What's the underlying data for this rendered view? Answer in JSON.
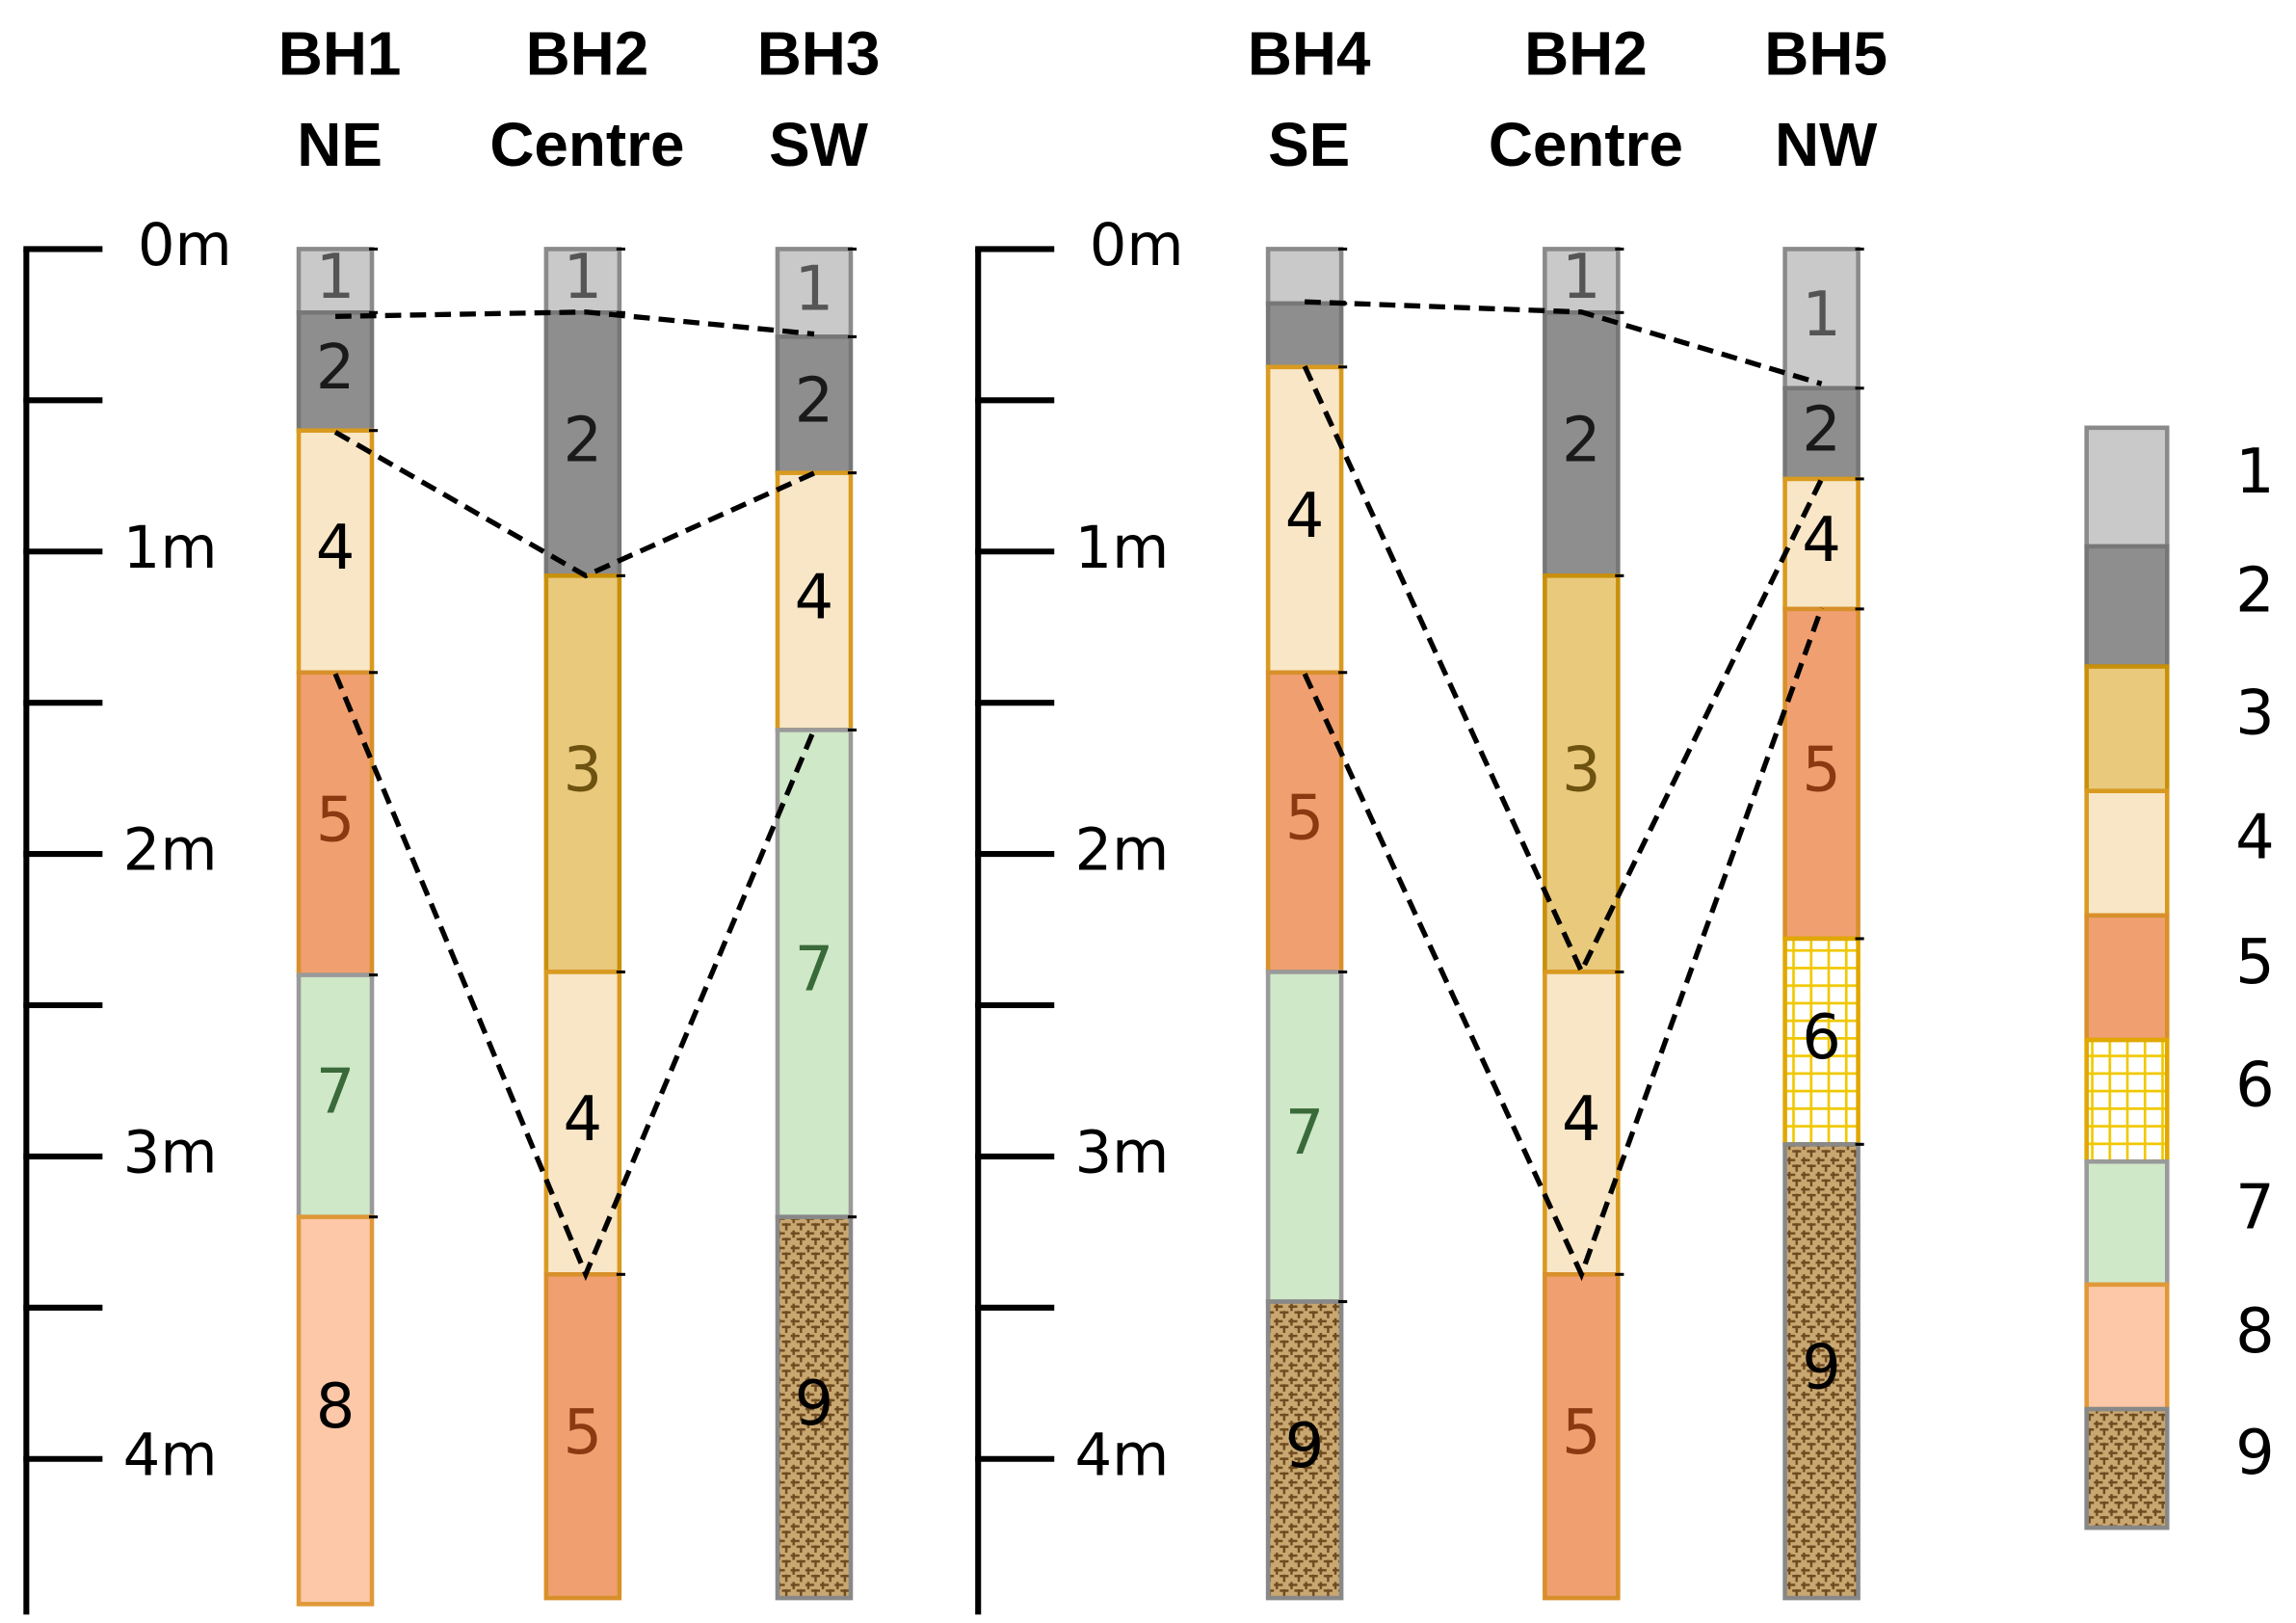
{
  "panels": [
    {
      "scale": {
        "lim": [
          0,
          4.5
        ],
        "ticks": [
          {
            "value": 0,
            "label": "0m"
          },
          {
            "value": 1,
            "label": "1m"
          },
          {
            "value": 2,
            "label": "2m"
          },
          {
            "value": 3,
            "label": "3m"
          },
          {
            "value": 4,
            "label": "4m"
          }
        ],
        "minor_ticks": [
          0.5,
          1.5,
          2.5,
          3.5
        ]
      },
      "boreholes": [
        {
          "name": "BH1",
          "location": "NE",
          "layers": [
            {
              "type": 1,
              "label": "1",
              "top": 0,
              "bottom": 0.21
            },
            {
              "type": 2,
              "label": "2",
              "top": 0.21,
              "bottom": 0.6
            },
            {
              "type": 4,
              "label": "4",
              "top": 0.6,
              "bottom": 1.4
            },
            {
              "type": 5,
              "label": "5",
              "top": 1.4,
              "bottom": 2.4
            },
            {
              "type": 7,
              "label": "7",
              "top": 2.4,
              "bottom": 3.2
            },
            {
              "type": 8,
              "label": "8",
              "top": 3.2,
              "bottom": 4.48
            }
          ]
        },
        {
          "name": "BH2",
          "location": "Centre",
          "layers": [
            {
              "type": 1,
              "label": "1",
              "top": 0,
              "bottom": 0.21
            },
            {
              "type": 2,
              "label": "2",
              "top": 0.21,
              "bottom": 1.08
            },
            {
              "type": 3,
              "label": "3",
              "top": 1.08,
              "bottom": 2.39
            },
            {
              "type": 4,
              "label": "4",
              "top": 2.39,
              "bottom": 3.39
            },
            {
              "type": 5,
              "label": "5",
              "top": 3.39,
              "bottom": 4.46
            }
          ]
        },
        {
          "name": "BH3",
          "location": "SW",
          "layers": [
            {
              "type": 1,
              "label": "1",
              "top": 0,
              "bottom": 0.29
            },
            {
              "type": 2,
              "label": "2",
              "top": 0.29,
              "bottom": 0.74
            },
            {
              "type": 4,
              "label": "4",
              "top": 0.74,
              "bottom": 1.59
            },
            {
              "type": 7,
              "label": "7",
              "top": 1.59,
              "bottom": 3.2
            },
            {
              "type": 9,
              "label": "9",
              "top": 3.2,
              "bottom": 4.46
            }
          ]
        }
      ]
    },
    {
      "scale": {
        "lim": [
          0,
          4.5
        ],
        "ticks": [
          {
            "value": 0,
            "label": "0m"
          },
          {
            "value": 1,
            "label": "1m"
          },
          {
            "value": 2,
            "label": "2m"
          },
          {
            "value": 3,
            "label": "3m"
          },
          {
            "value": 4,
            "label": "4m"
          }
        ],
        "minor_ticks": [
          0.5,
          1.5,
          2.5,
          3.5
        ]
      },
      "boreholes": [
        {
          "name": "BH4",
          "location": "SE",
          "layers": [
            {
              "type": 1,
              "label": null,
              "top": 0,
              "bottom": 0.18
            },
            {
              "type": 2,
              "label": null,
              "top": 0.18,
              "bottom": 0.39
            },
            {
              "type": 4,
              "label": "4",
              "top": 0.39,
              "bottom": 1.4
            },
            {
              "type": 5,
              "label": "5",
              "top": 1.4,
              "bottom": 2.39
            },
            {
              "type": 7,
              "label": "7",
              "top": 2.39,
              "bottom": 3.48
            },
            {
              "type": 9,
              "label": "9",
              "top": 3.48,
              "bottom": 4.46
            }
          ]
        },
        {
          "name": "BH2",
          "location": "Centre",
          "layers": [
            {
              "type": 1,
              "label": "1",
              "top": 0,
              "bottom": 0.21
            },
            {
              "type": 2,
              "label": "2",
              "top": 0.21,
              "bottom": 1.08
            },
            {
              "type": 3,
              "label": "3",
              "top": 1.08,
              "bottom": 2.39
            },
            {
              "type": 4,
              "label": "4",
              "top": 2.39,
              "bottom": 3.39
            },
            {
              "type": 5,
              "label": "5",
              "top": 3.39,
              "bottom": 4.46
            }
          ]
        },
        {
          "name": "BH5",
          "location": "NW",
          "layers": [
            {
              "type": 1,
              "label": "1",
              "top": 0,
              "bottom": 0.46
            },
            {
              "type": 2,
              "label": "2",
              "top": 0.46,
              "bottom": 0.76
            },
            {
              "type": 4,
              "label": "4",
              "top": 0.76,
              "bottom": 1.19
            },
            {
              "type": 5,
              "label": "5",
              "top": 1.19,
              "bottom": 2.28
            },
            {
              "type": 6,
              "label": "6",
              "top": 2.28,
              "bottom": 2.96
            },
            {
              "type": 9,
              "label": "9",
              "top": 2.96,
              "bottom": 4.46
            }
          ]
        }
      ]
    }
  ],
  "legend": [
    {
      "label": "1",
      "fill": "#c9c9c9",
      "stroke": "#8a8a8a",
      "text": "#555555"
    },
    {
      "label": "2",
      "fill": "#8e8e8e",
      "stroke": "#777777",
      "text": "#1a1a1a"
    },
    {
      "label": "3",
      "fill": "#e9c97c",
      "stroke": "#c8900a",
      "text": "#6e5210"
    },
    {
      "label": "4",
      "fill": "#f8e6c6",
      "stroke": "#d99a20",
      "text": "#000000"
    },
    {
      "label": "5",
      "fill": "#f0a070",
      "stroke": "#d8902a",
      "text": "#8a3a10"
    },
    {
      "label": "6",
      "fill": "#ffffff",
      "stroke": "#e0a800",
      "text": "#000000",
      "pattern": "grid"
    },
    {
      "label": "7",
      "fill": "#cfe8c8",
      "stroke": "#9a9a9a",
      "text": "#3a6a3a"
    },
    {
      "label": "8",
      "fill": "#fcc8a8",
      "stroke": "#e09838",
      "text": "#000000"
    },
    {
      "label": "9",
      "fill": "#b08850",
      "stroke": "#888888",
      "text": "#000000",
      "pattern": "weave"
    }
  ]
}
